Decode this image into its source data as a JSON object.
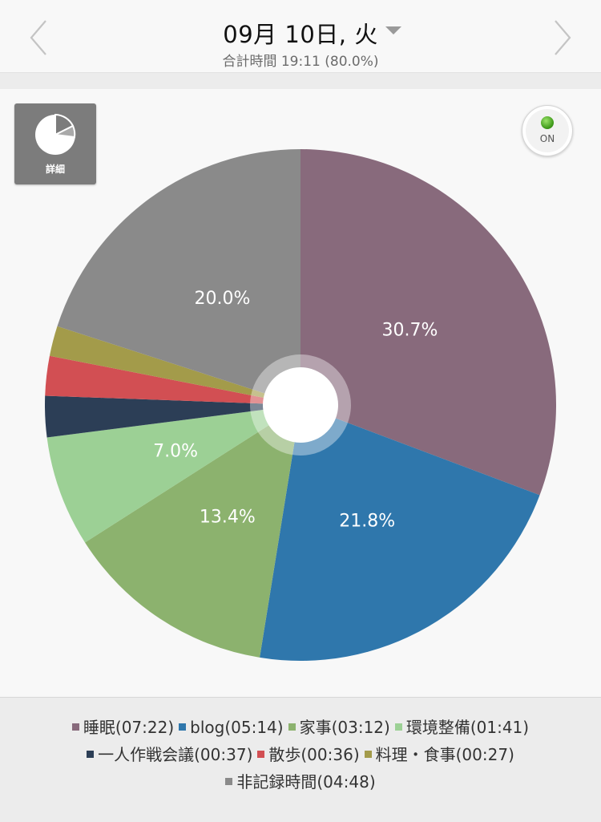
{
  "header": {
    "date_title": "09月 10日, 火",
    "total_time": "合計時間 19:11 (80.0%)"
  },
  "detail_button": {
    "label": "詳細"
  },
  "toggle": {
    "label": "ON",
    "state": "on"
  },
  "chart_data": {
    "type": "pie",
    "style": "donut",
    "start_angle_deg": 0,
    "direction": "clockwise",
    "slices": [
      {
        "name": "睡眠",
        "duration": "07:22",
        "percent": 30.7,
        "color": "#886a7c",
        "show_label": true
      },
      {
        "name": "blog",
        "duration": "05:14",
        "percent": 21.8,
        "color": "#2f77ac",
        "show_label": true
      },
      {
        "name": "家事",
        "duration": "03:12",
        "percent": 13.4,
        "color": "#8cb26e",
        "show_label": true
      },
      {
        "name": "環境整備",
        "duration": "01:41",
        "percent": 7.0,
        "color": "#9cd095",
        "show_label": true
      },
      {
        "name": "一人作戦会議",
        "duration": "00:37",
        "percent": 2.6,
        "color": "#2c3e56",
        "show_label": false
      },
      {
        "name": "散歩",
        "duration": "00:36",
        "percent": 2.5,
        "color": "#d24f53",
        "show_label": false
      },
      {
        "name": "料理・食事",
        "duration": "00:27",
        "percent": 1.9,
        "color": "#a39b4a",
        "show_label": false
      },
      {
        "name": "非記録時間",
        "duration": "04:48",
        "percent": 20.0,
        "color": "#8a8a8a",
        "show_label": true
      }
    ]
  },
  "legend": {
    "rows": [
      [
        {
          "text": "睡眠(07:22)",
          "color": "#886a7c"
        },
        {
          "text": "blog(05:14)",
          "color": "#2f77ac"
        },
        {
          "text": "家事(03:12)",
          "color": "#8cb26e"
        },
        {
          "text": "環境整備(01:41)",
          "color": "#9cd095"
        }
      ],
      [
        {
          "text": "一人作戦会議(00:37)",
          "color": "#2c3e56"
        },
        {
          "text": "散歩(00:36)",
          "color": "#d24f53"
        },
        {
          "text": "料理・食事(00:27)",
          "color": "#a39b4a"
        }
      ],
      [
        {
          "text": "非記録時間(04:48)",
          "color": "#8a8a8a"
        }
      ]
    ]
  }
}
